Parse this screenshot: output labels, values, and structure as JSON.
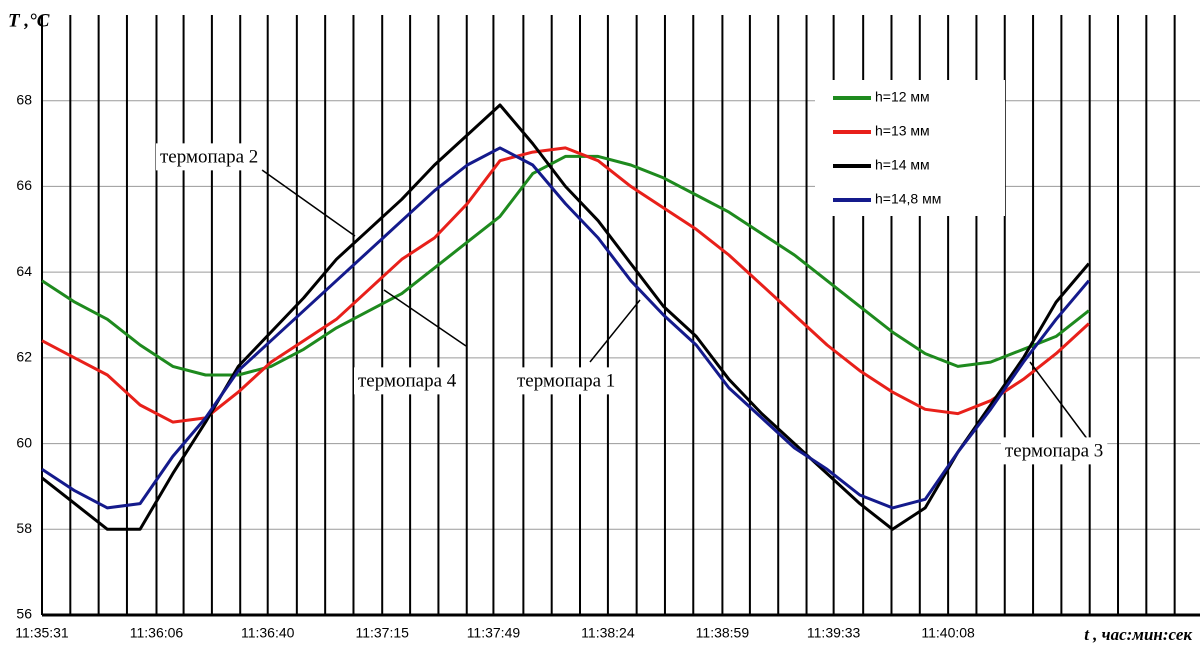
{
  "chart_data": {
    "type": "line",
    "y_label": "T ,°C",
    "x_label": "t , час:мин:сек",
    "x": [
      "11:35:31",
      "11:35:41",
      "11:35:51",
      "11:36:01",
      "11:36:11",
      "11:36:21",
      "11:36:31",
      "11:36:41",
      "11:36:51",
      "11:37:01",
      "11:37:11",
      "11:37:21",
      "11:37:31",
      "11:37:41",
      "11:37:51",
      "11:38:01",
      "11:38:11",
      "11:38:21",
      "11:38:31",
      "11:38:41",
      "11:38:51",
      "11:39:01",
      "11:39:11",
      "11:39:21",
      "11:39:31",
      "11:39:41",
      "11:39:51",
      "11:40:01",
      "11:40:11",
      "11:40:21",
      "11:40:31",
      "11:40:41",
      "11:40:51"
    ],
    "series": [
      {
        "name": "h=12  мм",
        "color": "#1e8a1e",
        "values": [
          63.8,
          63.3,
          62.9,
          62.3,
          61.8,
          61.6,
          61.6,
          61.8,
          62.2,
          62.7,
          63.1,
          63.5,
          64.1,
          64.7,
          65.3,
          66.3,
          66.7,
          66.7,
          66.5,
          66.2,
          65.8,
          65.4,
          64.9,
          64.4,
          63.8,
          63.2,
          62.6,
          62.1,
          61.8,
          61.9,
          62.2,
          62.5,
          63.1
        ]
      },
      {
        "name": "h=13 мм",
        "color": "#e8201a",
        "values": [
          62.4,
          62.0,
          61.6,
          60.9,
          60.5,
          60.6,
          61.2,
          61.9,
          62.4,
          62.9,
          63.6,
          64.3,
          64.8,
          65.6,
          66.6,
          66.8,
          66.9,
          66.6,
          66.0,
          65.5,
          65.0,
          64.4,
          63.7,
          63.0,
          62.3,
          61.7,
          61.2,
          60.8,
          60.7,
          61.0,
          61.5,
          62.1,
          62.8
        ]
      },
      {
        "name": "h=14 мм",
        "color": "#000000",
        "values": [
          59.2,
          58.6,
          58.0,
          58.0,
          59.3,
          60.5,
          61.8,
          62.6,
          63.4,
          64.3,
          65.0,
          65.7,
          66.5,
          67.2,
          67.9,
          67.0,
          66.0,
          65.2,
          64.2,
          63.2,
          62.5,
          61.5,
          60.7,
          60.0,
          59.3,
          58.6,
          58.0,
          58.5,
          59.8,
          60.9,
          62.0,
          63.3,
          64.2
        ]
      },
      {
        "name": "h=14,8 мм",
        "color": "#141a8c",
        "values": [
          59.4,
          58.9,
          58.5,
          58.6,
          59.7,
          60.6,
          61.7,
          62.4,
          63.1,
          63.8,
          64.5,
          65.2,
          65.9,
          66.5,
          66.9,
          66.5,
          65.6,
          64.8,
          63.8,
          63.0,
          62.3,
          61.3,
          60.6,
          59.9,
          59.4,
          58.8,
          58.5,
          58.7,
          59.8,
          60.8,
          61.9,
          62.9,
          63.8
        ]
      }
    ],
    "xlim": [
      "11:35:31",
      "11:41:25"
    ],
    "xticks": [
      "11:35:31",
      "11:36:06",
      "11:36:40",
      "11:37:15",
      "11:37:49",
      "11:38:24",
      "11:38:59",
      "11:39:33",
      "11:40:08"
    ],
    "ylim": [
      56,
      70
    ],
    "yticks": [
      56,
      58,
      60,
      62,
      64,
      66,
      68
    ],
    "grid": true,
    "legend": "upper right",
    "annotations": [
      "термопара 2",
      "термопара 4",
      "термопара 1",
      "термопара 3"
    ]
  }
}
